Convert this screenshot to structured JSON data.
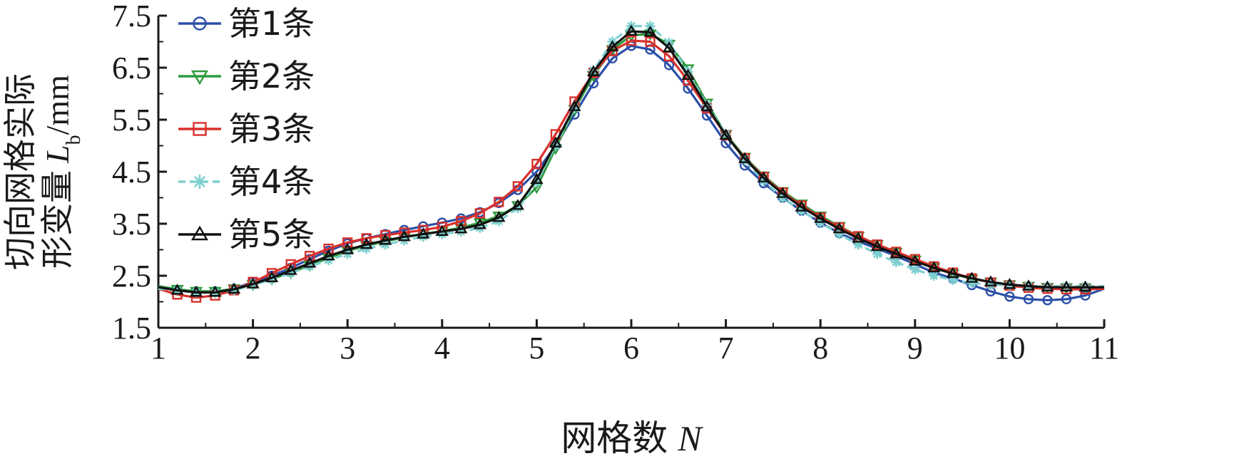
{
  "chart_data": {
    "type": "line",
    "xlabel_prefix": "网格数",
    "xlabel_var": "N",
    "ylabel_line1": "切向网格实际",
    "ylabel_line2_prefix": "形变量",
    "ylabel_var": "L",
    "ylabel_sub": "b",
    "ylabel_unit": "/mm",
    "xlim": [
      1,
      11
    ],
    "ylim": [
      1.5,
      7.5
    ],
    "xticks": [
      1,
      2,
      3,
      4,
      5,
      6,
      7,
      8,
      9,
      10,
      11
    ],
    "xtick_labels": [
      "1",
      "2",
      "3",
      "4",
      "5",
      "6",
      "7",
      "8",
      "9",
      "10",
      "11"
    ],
    "yticks": [
      1.5,
      2.5,
      3.5,
      4.5,
      5.5,
      6.5,
      7.5
    ],
    "ytick_labels": [
      "1.5",
      "2.5",
      "3.5",
      "4.5",
      "5.5",
      "6.5",
      "7.5"
    ],
    "grid": false,
    "legend_position": "top-left",
    "x": [
      1.0,
      1.2,
      1.4,
      1.6,
      1.8,
      2.0,
      2.2,
      2.4,
      2.6,
      2.8,
      3.0,
      3.2,
      3.4,
      3.6,
      3.8,
      4.0,
      4.2,
      4.4,
      4.6,
      4.8,
      5.0,
      5.2,
      5.4,
      5.6,
      5.8,
      6.0,
      6.2,
      6.4,
      6.6,
      6.8,
      7.0,
      7.2,
      7.4,
      7.6,
      7.8,
      8.0,
      8.2,
      8.4,
      8.6,
      8.8,
      9.0,
      9.2,
      9.4,
      9.6,
      9.8,
      10.0,
      10.2,
      10.4,
      10.6,
      10.8,
      11.0
    ],
    "series": [
      {
        "name": "第1条",
        "color": "#2b4fa8",
        "marker": "circle",
        "dash": "none",
        "values": [
          2.28,
          2.22,
          2.2,
          2.2,
          2.25,
          2.38,
          2.5,
          2.65,
          2.82,
          2.98,
          3.12,
          3.22,
          3.3,
          3.38,
          3.45,
          3.52,
          3.6,
          3.72,
          3.9,
          4.15,
          4.5,
          5.0,
          5.6,
          6.2,
          6.68,
          6.92,
          6.85,
          6.55,
          6.1,
          5.58,
          5.05,
          4.62,
          4.28,
          4.0,
          3.75,
          3.52,
          3.32,
          3.16,
          3.02,
          2.88,
          2.72,
          2.56,
          2.45,
          2.32,
          2.2,
          2.1,
          2.05,
          2.03,
          2.05,
          2.12,
          2.25
        ]
      },
      {
        "name": "第2条",
        "color": "#2e9a3e",
        "marker": "triangle-down",
        "dash": "none",
        "values": [
          2.3,
          2.24,
          2.2,
          2.2,
          2.25,
          2.33,
          2.44,
          2.56,
          2.7,
          2.84,
          2.98,
          3.08,
          3.16,
          3.24,
          3.3,
          3.36,
          3.42,
          3.52,
          3.65,
          3.85,
          4.2,
          4.95,
          5.7,
          6.35,
          6.85,
          7.12,
          7.15,
          6.95,
          6.48,
          5.82,
          5.22,
          4.78,
          4.42,
          4.12,
          3.88,
          3.65,
          3.45,
          3.26,
          3.1,
          2.95,
          2.8,
          2.66,
          2.54,
          2.44,
          2.38,
          2.33,
          2.3,
          2.28,
          2.27,
          2.27,
          2.28
        ]
      },
      {
        "name": "第3条",
        "color": "#d8302b",
        "marker": "square",
        "dash": "none",
        "values": [
          2.25,
          2.14,
          2.08,
          2.12,
          2.22,
          2.38,
          2.55,
          2.72,
          2.88,
          3.02,
          3.14,
          3.22,
          3.28,
          3.33,
          3.38,
          3.44,
          3.55,
          3.7,
          3.92,
          4.22,
          4.65,
          5.22,
          5.85,
          6.4,
          6.82,
          7.02,
          7.0,
          6.72,
          6.25,
          5.72,
          5.2,
          4.76,
          4.4,
          4.1,
          3.85,
          3.62,
          3.43,
          3.26,
          3.1,
          2.96,
          2.82,
          2.68,
          2.56,
          2.45,
          2.37,
          2.31,
          2.27,
          2.25,
          2.24,
          2.24,
          2.25
        ]
      },
      {
        "name": "第4条",
        "color": "#7ecfcf",
        "marker": "asterisk",
        "dash": "dashed",
        "values": [
          2.25,
          2.22,
          2.18,
          2.18,
          2.22,
          2.32,
          2.43,
          2.55,
          2.68,
          2.8,
          2.92,
          3.02,
          3.1,
          3.18,
          3.25,
          3.3,
          3.35,
          3.42,
          3.55,
          3.8,
          4.3,
          5.0,
          5.72,
          6.45,
          7.0,
          7.3,
          7.3,
          6.98,
          6.42,
          5.78,
          5.22,
          4.72,
          4.32,
          4.0,
          3.75,
          3.52,
          3.3,
          3.1,
          2.92,
          2.76,
          2.62,
          2.5,
          2.42,
          2.36,
          2.33,
          2.32,
          2.3,
          2.3,
          2.3,
          2.3,
          2.3
        ]
      },
      {
        "name": "第5条",
        "color": "#111111",
        "marker": "triangle-up",
        "dash": "none",
        "values": [
          2.28,
          2.22,
          2.18,
          2.18,
          2.24,
          2.34,
          2.46,
          2.6,
          2.74,
          2.88,
          3.0,
          3.1,
          3.18,
          3.25,
          3.3,
          3.35,
          3.4,
          3.48,
          3.62,
          3.85,
          4.35,
          5.05,
          5.75,
          6.42,
          6.9,
          7.2,
          7.18,
          6.88,
          6.35,
          5.75,
          5.2,
          4.75,
          4.38,
          4.08,
          3.82,
          3.6,
          3.4,
          3.22,
          3.06,
          2.92,
          2.78,
          2.65,
          2.54,
          2.45,
          2.38,
          2.33,
          2.3,
          2.28,
          2.28,
          2.28,
          2.28
        ]
      }
    ]
  }
}
